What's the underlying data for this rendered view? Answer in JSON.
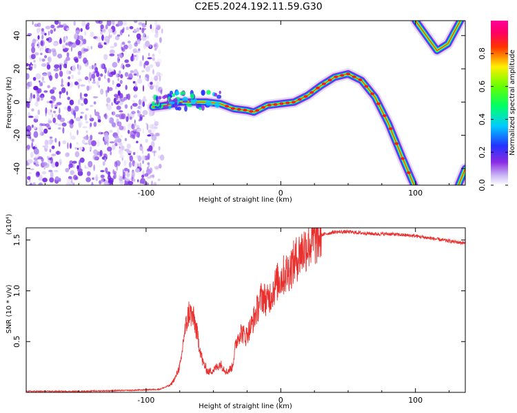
{
  "title": "C2E5.2024.192.11.59.G30",
  "chart_data": [
    {
      "type": "heatmap",
      "xlabel": "Height of straight line (km)",
      "ylabel": "Frequency (Hz)",
      "xlim": [
        -189,
        137
      ],
      "ylim": [
        -50,
        49
      ],
      "x_ticks": [
        -100,
        0,
        100
      ],
      "y_ticks": [
        -40,
        -20,
        0,
        20,
        40
      ],
      "colorbar": {
        "label": "Normalized spectral amplitude",
        "range": [
          0,
          1
        ],
        "ticks": [
          "0.0",
          "0.2",
          "0.4",
          "0.6",
          "0.8"
        ]
      },
      "noise_region_x": [
        -189,
        -88
      ],
      "ridge": {
        "x": [
          -95,
          -85,
          -75,
          -65,
          -55,
          -45,
          -35,
          -25,
          -20,
          -10,
          0,
          10,
          20,
          30,
          40,
          50,
          60,
          70,
          80,
          90,
          100
        ],
        "freq": [
          -3,
          -2,
          0,
          0,
          0,
          -1,
          -4,
          -5,
          -6,
          -2,
          -1,
          0,
          4,
          10,
          15,
          17,
          13,
          3,
          -13,
          -33,
          -52
        ]
      },
      "upper_arc": {
        "x": [
          100,
          108,
          116,
          124,
          134
        ],
        "freq": [
          49,
          40,
          31,
          35,
          50
        ]
      },
      "lower_right_arc": {
        "x": [
          132,
          137
        ],
        "freq": [
          -50,
          -40
        ]
      }
    },
    {
      "type": "line",
      "xlabel": "Height of straight line (km)",
      "ylabel": "SNR (10 * v/v)",
      "y_multiplier": "(x10⁴)",
      "xlim": [
        -189,
        137
      ],
      "ylim": [
        0,
        1.62
      ],
      "x_ticks": [
        -100,
        0,
        100
      ],
      "y_ticks": [
        "0.5",
        "1.0",
        "1.5"
      ],
      "series": [
        {
          "color": "#e8302e",
          "x": [
            -189,
            -150,
            -110,
            -90,
            -82,
            -78,
            -74,
            -72,
            -68,
            -64,
            -61,
            -58,
            -54,
            -50,
            -45,
            -40,
            -36,
            -33,
            -30,
            -26,
            -22,
            -18,
            -14,
            -10,
            -6,
            -2,
            2,
            6,
            10,
            15,
            20,
            25,
            30,
            40,
            50,
            60,
            70,
            80,
            90,
            100,
            110,
            120,
            130,
            137
          ],
          "y": [
            0.01,
            0.01,
            0.02,
            0.03,
            0.07,
            0.15,
            0.3,
            0.55,
            0.8,
            0.7,
            0.5,
            0.3,
            0.2,
            0.22,
            0.28,
            0.2,
            0.25,
            0.5,
            0.6,
            0.55,
            0.65,
            0.8,
            0.95,
            0.9,
            1.0,
            1.1,
            1.15,
            1.2,
            1.28,
            1.38,
            1.45,
            1.5,
            1.55,
            1.58,
            1.58,
            1.57,
            1.56,
            1.56,
            1.55,
            1.54,
            1.52,
            1.5,
            1.48,
            1.47
          ]
        }
      ]
    }
  ]
}
